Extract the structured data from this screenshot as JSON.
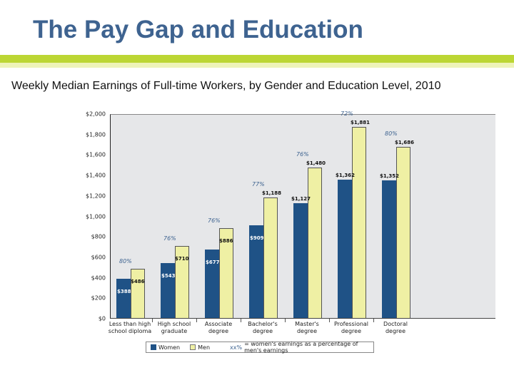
{
  "slide": {
    "title": "The Pay Gap and Education",
    "subtitle": "Weekly Median Earnings of Full-time Workers, by Gender and Education Level, 2010"
  },
  "colors": {
    "title": "#3e6390",
    "accent_bar": "#bcd634",
    "accent_bar_light": "#eef3b8",
    "women": "#1f5286",
    "men": "#eff0a4",
    "plot_bg": "#e6e7e9",
    "percent_label": "#3e6390"
  },
  "chart_data": {
    "type": "bar",
    "title": "Weekly Median Earnings of Full-time Workers, by Gender and Education Level, 2010",
    "xlabel": "",
    "ylabel": "",
    "ylim": [
      0,
      2000
    ],
    "yticks": [
      "$0",
      "$200",
      "$400",
      "$600",
      "$800",
      "$1,000",
      "$1,200",
      "$1,400",
      "$1,600",
      "$1,800",
      "$2,000"
    ],
    "grid": false,
    "legend_position": "bottom",
    "categories": [
      "Less than high school diploma",
      "High school graduate",
      "Associate degree",
      "Bachelor's degree",
      "Master's degree",
      "Professional degree",
      "Doctoral degree"
    ],
    "category_lines": [
      [
        "Less than high",
        "school diploma"
      ],
      [
        "High school",
        "graduate"
      ],
      [
        "Associate",
        "degree"
      ],
      [
        "Bachelor's",
        "degree"
      ],
      [
        "Master's",
        "degree"
      ],
      [
        "Professional",
        "degree"
      ],
      [
        "Doctoral",
        "degree"
      ]
    ],
    "series": [
      {
        "name": "Women",
        "values": [
          388,
          543,
          677,
          909,
          1127,
          1362,
          1352
        ],
        "labels": [
          "$388",
          "$543",
          "$677",
          "$909",
          "$1,127",
          "$1,362",
          "$1,352"
        ]
      },
      {
        "name": "Men",
        "values": [
          486,
          710,
          886,
          1188,
          1480,
          1881,
          1686
        ],
        "labels": [
          "$486",
          "$710",
          "$886",
          "$1,188",
          "$1,480",
          "$1,881",
          "$1,686"
        ]
      }
    ],
    "annotations": {
      "percentages": [
        "80%",
        "76%",
        "76%",
        "77%",
        "76%",
        "72%",
        "80%"
      ]
    },
    "legend": {
      "women": "Women",
      "men": "Men",
      "note_key": "xx%",
      "note_text": "= women's earnings as a percentage of men's earnings"
    }
  }
}
